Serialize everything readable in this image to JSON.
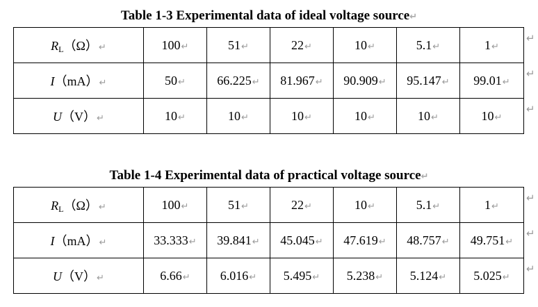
{
  "mark": "↵",
  "tables": [
    {
      "caption": "Table 1-3 Experimental data of ideal voltage source",
      "rows": [
        {
          "sym": "R",
          "sub": "L",
          "unit": "（Ω）",
          "cells": [
            "100",
            "51",
            "22",
            "10",
            "5.1",
            "1"
          ]
        },
        {
          "sym": "I",
          "sub": "",
          "unit": "（mA）",
          "cells": [
            "50",
            "66.225",
            "81.967",
            "90.909",
            "95.147",
            "99.01"
          ]
        },
        {
          "sym": "U",
          "sub": "",
          "unit": "（V）",
          "cells": [
            "10",
            "10",
            "10",
            "10",
            "10",
            "10"
          ]
        }
      ]
    },
    {
      "caption": "Table 1-4 Experimental data of practical voltage source",
      "rows": [
        {
          "sym": "R",
          "sub": "L",
          "unit": "（Ω）",
          "cells": [
            "100",
            "51",
            "22",
            "10",
            "5.1",
            "1"
          ]
        },
        {
          "sym": "I",
          "sub": "",
          "unit": "（mA）",
          "cells": [
            "33.333",
            "39.841",
            "45.045",
            "47.619",
            "48.757",
            "49.751"
          ]
        },
        {
          "sym": "U",
          "sub": "",
          "unit": "（V）",
          "cells": [
            "6.66",
            "6.016",
            "5.495",
            "5.238",
            "5.124",
            "5.025"
          ]
        }
      ]
    }
  ]
}
